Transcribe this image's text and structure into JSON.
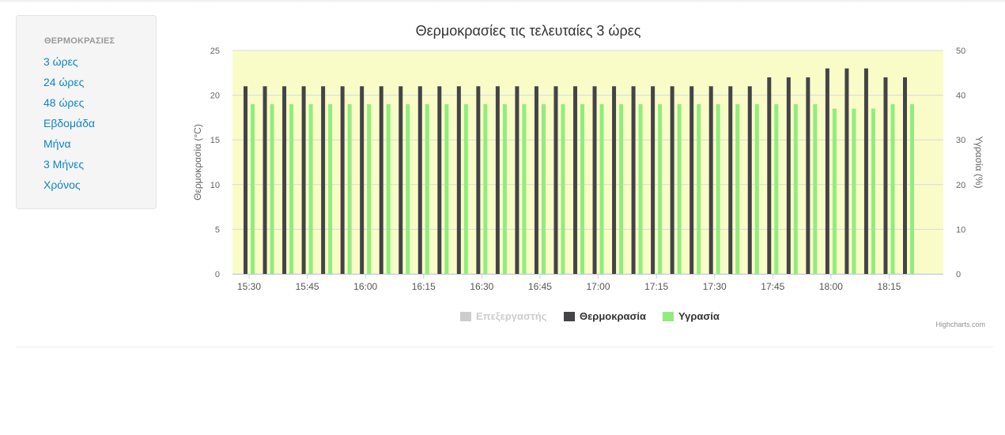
{
  "sidebar": {
    "header": "ΘΕΡΜΟΚΡΑΣΙΕΣ",
    "items": [
      {
        "label": "3 ώρες",
        "name": "nav-3-hours"
      },
      {
        "label": "24 ώρες",
        "name": "nav-24-hours"
      },
      {
        "label": "48 ώρες",
        "name": "nav-48-hours"
      },
      {
        "label": "Εβδομάδα",
        "name": "nav-week"
      },
      {
        "label": "Μήνα",
        "name": "nav-month"
      },
      {
        "label": "3 Μήνες",
        "name": "nav-3-months"
      },
      {
        "label": "Χρόνος",
        "name": "nav-year"
      }
    ]
  },
  "chart_data": {
    "type": "bar",
    "title": "Θερμοκρασίες τις τελευταίες 3 ώρες",
    "credits": "Highcharts.com",
    "y_left": {
      "label": "Θερμοκρασία (°C)",
      "range": [
        0,
        25
      ],
      "ticks": [
        0,
        5,
        10,
        15,
        20,
        25
      ]
    },
    "y_right": {
      "label": "Υγρασία (%)",
      "range": [
        0,
        50
      ],
      "ticks": [
        0,
        10,
        20,
        30,
        40,
        50
      ]
    },
    "x_ticks": [
      "15:30",
      "15:45",
      "16:00",
      "16:15",
      "16:30",
      "16:45",
      "17:00",
      "17:15",
      "17:30",
      "17:45",
      "18:00",
      "18:15"
    ],
    "x_tick_every": 3,
    "plot_band_color": "#fafcc8",
    "legend_position": "bottom-center",
    "series": [
      {
        "name": "Επεξεργαστής",
        "color": "#cccccc",
        "visible": false,
        "axis": "left",
        "values": []
      },
      {
        "name": "Θερμοκρασία",
        "color": "#434348",
        "visible": true,
        "axis": "left",
        "values": [
          21,
          21,
          21,
          21,
          21,
          21,
          21,
          21,
          21,
          21,
          21,
          21,
          21,
          21,
          21,
          21,
          21,
          21,
          21,
          21,
          21,
          21,
          21,
          21,
          21,
          21,
          21,
          22,
          22,
          22,
          23,
          23,
          23,
          22,
          22
        ]
      },
      {
        "name": "Υγρασία",
        "color": "#90ed7d",
        "visible": true,
        "axis": "right",
        "values": [
          38,
          38,
          38,
          38,
          38,
          38,
          38,
          38,
          38,
          38,
          38,
          38,
          38,
          38,
          38,
          38,
          38,
          38,
          38,
          38,
          38,
          38,
          38,
          38,
          38,
          38,
          38,
          38,
          38,
          38,
          37,
          37,
          37,
          38,
          38
        ]
      }
    ]
  }
}
